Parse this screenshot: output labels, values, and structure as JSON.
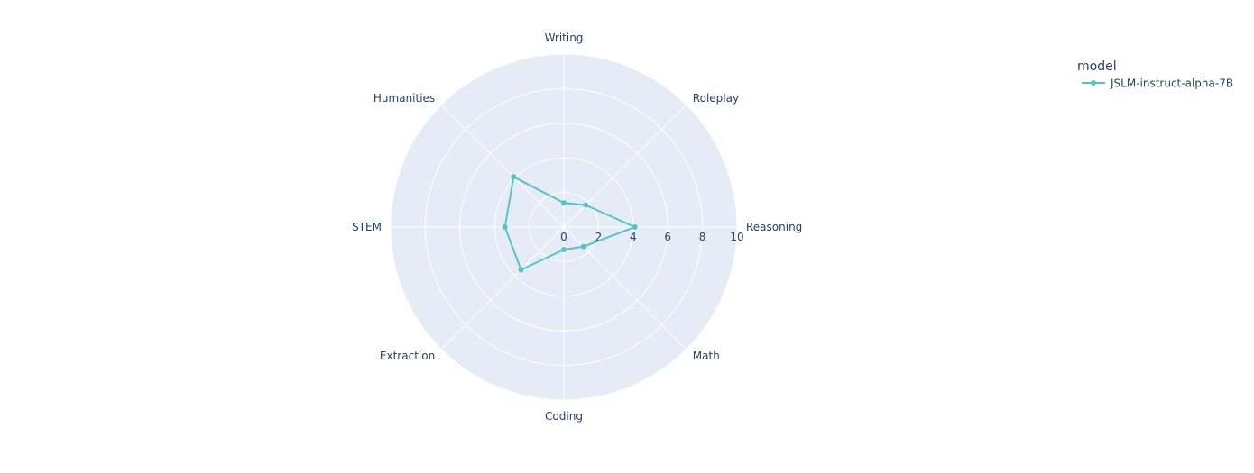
{
  "chart_data": {
    "type": "radar",
    "categories": [
      "Writing",
      "Roleplay",
      "Reasoning",
      "Math",
      "Coding",
      "Extraction",
      "STEM",
      "Humanities"
    ],
    "radial_ticks": [
      "0",
      "2",
      "4",
      "6",
      "8",
      "10"
    ],
    "rlim": [
      0,
      10
    ],
    "grid": true,
    "legend": {
      "title": "model",
      "position": "top-right"
    },
    "series": [
      {
        "name": "JSLM-instruct-alpha-7B",
        "values": [
          1.4,
          1.8,
          4.1,
          1.6,
          1.3,
          3.5,
          3.4,
          4.1
        ],
        "color": "#5bc1c9"
      }
    ]
  },
  "colors": {
    "plot_bg": "#e5ecf6",
    "grid": "#ffffff",
    "text": "#2a3f5f"
  }
}
